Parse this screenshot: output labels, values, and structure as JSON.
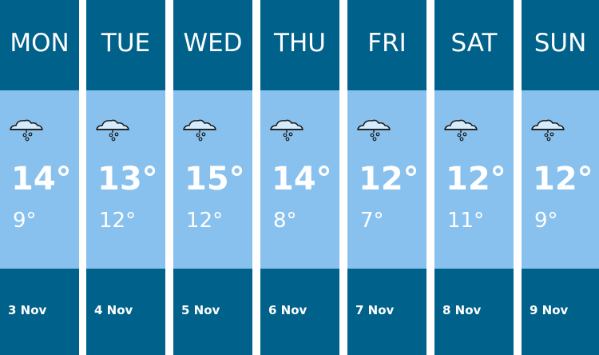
{
  "colors": {
    "dark": "#00628a",
    "light": "#88c1ee"
  },
  "days": [
    {
      "day": "MON",
      "high": "14°",
      "low": "9°",
      "date": "3 Nov",
      "icon": "cloud-rain-icon"
    },
    {
      "day": "TUE",
      "high": "13°",
      "low": "12°",
      "date": "4 Nov",
      "icon": "cloud-rain-icon"
    },
    {
      "day": "WED",
      "high": "15°",
      "low": "12°",
      "date": "5 Nov",
      "icon": "cloud-rain-icon"
    },
    {
      "day": "THU",
      "high": "14°",
      "low": "8°",
      "date": "6 Nov",
      "icon": "cloud-rain-icon"
    },
    {
      "day": "FRI",
      "high": "12°",
      "low": "7°",
      "date": "7 Nov",
      "icon": "cloud-rain-icon"
    },
    {
      "day": "SAT",
      "high": "12°",
      "low": "11°",
      "date": "8 Nov",
      "icon": "cloud-rain-icon"
    },
    {
      "day": "SUN",
      "high": "12°",
      "low": "9°",
      "date": "9 Nov",
      "icon": "cloud-rain-icon"
    }
  ]
}
